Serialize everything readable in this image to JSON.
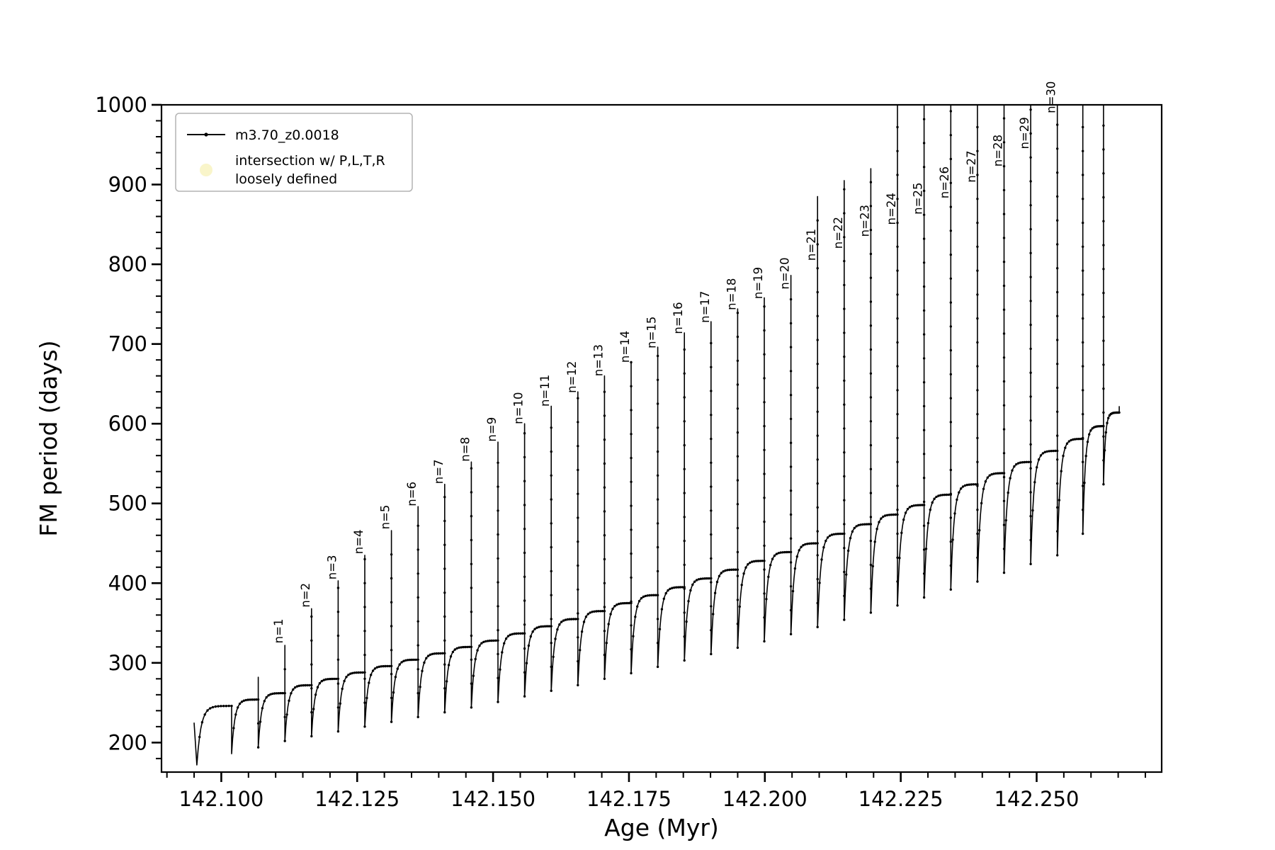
{
  "chart_data": {
    "type": "line",
    "title": "",
    "xlabel": "Age (Myr)",
    "ylabel": "FM period (days)",
    "xlim": [
      142.089,
      142.273
    ],
    "ylim": [
      163,
      1000
    ],
    "grid": false,
    "x_minor_step": 0.005,
    "y_minor_step": 20,
    "xticks": [
      {
        "v": 142.1,
        "label": "142.100"
      },
      {
        "v": 142.125,
        "label": "142.125"
      },
      {
        "v": 142.15,
        "label": "142.150"
      },
      {
        "v": 142.175,
        "label": "142.175"
      },
      {
        "v": 142.2,
        "label": "142.200"
      },
      {
        "v": 142.225,
        "label": "142.225"
      },
      {
        "v": 142.25,
        "label": "142.250"
      }
    ],
    "yticks": [
      {
        "v": 200,
        "label": "200"
      },
      {
        "v": 300,
        "label": "300"
      },
      {
        "v": 400,
        "label": "400"
      },
      {
        "v": 500,
        "label": "500"
      },
      {
        "v": 600,
        "label": "600"
      },
      {
        "v": 700,
        "label": "700"
      },
      {
        "v": 800,
        "label": "800"
      },
      {
        "v": 900,
        "label": "900"
      },
      {
        "v": 1000,
        "label": "1000"
      }
    ],
    "legend": {
      "position": "upper-left",
      "entries": [
        {
          "label": "m3.70_z0.0018",
          "marker": "line-dot",
          "color": "#000000"
        },
        {
          "label_lines": [
            "intersection w/ P,L,T,R",
            "loosely defined"
          ],
          "marker": "dot",
          "color": "#f5eea6"
        }
      ]
    },
    "series": [
      {
        "name": "m3.70_z0.0018",
        "color": "#000000",
        "marker": "point"
      }
    ],
    "curve": {
      "recovery_tau": 0.12,
      "start": {
        "x": 142.095,
        "y": 225
      },
      "end": {
        "x": 142.2652,
        "y": 622
      },
      "events": [
        {
          "n": null,
          "label": null,
          "x": 142.0955,
          "peak": null,
          "label_y": null,
          "dip": 172,
          "plateau": 246
        },
        {
          "n": null,
          "label": null,
          "x": 142.1019,
          "peak": null,
          "label_y": null,
          "dip": 186,
          "plateau": 254
        },
        {
          "n": null,
          "label": null,
          "x": 142.1068,
          "peak": 282,
          "label_y": null,
          "dip": 194,
          "plateau": 262
        },
        {
          "n": 1,
          "label": "n=1",
          "x": 142.1117,
          "peak": 322,
          "label_y": 320,
          "dip": 202,
          "plateau": 272
        },
        {
          "n": 2,
          "label": "n=2",
          "x": 142.1166,
          "peak": 368,
          "label_y": 365,
          "dip": 208,
          "plateau": 280
        },
        {
          "n": 3,
          "label": "n=3",
          "x": 142.1215,
          "peak": 403,
          "label_y": 400,
          "dip": 214,
          "plateau": 288
        },
        {
          "n": 4,
          "label": "n=4",
          "x": 142.1264,
          "peak": 435,
          "label_y": 432,
          "dip": 220,
          "plateau": 296
        },
        {
          "n": 5,
          "label": "n=5",
          "x": 142.1313,
          "peak": 466,
          "label_y": 463,
          "dip": 226,
          "plateau": 304
        },
        {
          "n": 6,
          "label": "n=6",
          "x": 142.1362,
          "peak": 496,
          "label_y": 492,
          "dip": 232,
          "plateau": 312
        },
        {
          "n": 7,
          "label": "n=7",
          "x": 142.1411,
          "peak": 524,
          "label_y": 520,
          "dip": 238,
          "plateau": 320
        },
        {
          "n": 8,
          "label": "n=8",
          "x": 142.146,
          "peak": 552,
          "label_y": 548,
          "dip": 244,
          "plateau": 328
        },
        {
          "n": 9,
          "label": "n=9",
          "x": 142.1509,
          "peak": 577,
          "label_y": 573,
          "dip": 251,
          "plateau": 337
        },
        {
          "n": 10,
          "label": "n=10",
          "x": 142.1558,
          "peak": 600,
          "label_y": 595,
          "dip": 258,
          "plateau": 346
        },
        {
          "n": 11,
          "label": "n=11",
          "x": 142.1607,
          "peak": 622,
          "label_y": 617,
          "dip": 265,
          "plateau": 355
        },
        {
          "n": 12,
          "label": "n=12",
          "x": 142.1656,
          "peak": 640,
          "label_y": 634,
          "dip": 272,
          "plateau": 365
        },
        {
          "n": 13,
          "label": "n=13",
          "x": 142.1705,
          "peak": 660,
          "label_y": 655,
          "dip": 280,
          "plateau": 375
        },
        {
          "n": 14,
          "label": "n=14",
          "x": 142.1754,
          "peak": 678,
          "label_y": 672,
          "dip": 287,
          "plateau": 385
        },
        {
          "n": 15,
          "label": "n=15",
          "x": 142.1803,
          "peak": 696,
          "label_y": 690,
          "dip": 295,
          "plateau": 395
        },
        {
          "n": 16,
          "label": "n=16",
          "x": 142.1852,
          "peak": 714,
          "label_y": 708,
          "dip": 303,
          "plateau": 406
        },
        {
          "n": 17,
          "label": "n=17",
          "x": 142.1901,
          "peak": 728,
          "label_y": 722,
          "dip": 311,
          "plateau": 417
        },
        {
          "n": 18,
          "label": "n=18",
          "x": 142.195,
          "peak": 744,
          "label_y": 738,
          "dip": 319,
          "plateau": 428
        },
        {
          "n": 19,
          "label": "n=19",
          "x": 142.1999,
          "peak": 758,
          "label_y": 752,
          "dip": 327,
          "plateau": 439
        },
        {
          "n": 20,
          "label": "n=20",
          "x": 142.2048,
          "peak": 786,
          "label_y": 764,
          "dip": 336,
          "plateau": 450
        },
        {
          "n": 21,
          "label": "n=21",
          "x": 142.2097,
          "peak": 885,
          "label_y": 800,
          "dip": 345,
          "plateau": 462
        },
        {
          "n": 22,
          "label": "n=22",
          "x": 142.2146,
          "peak": 905,
          "label_y": 815,
          "dip": 354,
          "plateau": 474
        },
        {
          "n": 23,
          "label": "n=23",
          "x": 142.2195,
          "peak": 920,
          "label_y": 830,
          "dip": 363,
          "plateau": 486
        },
        {
          "n": 24,
          "label": "n=24",
          "x": 142.2244,
          "peak": 1005,
          "label_y": 845,
          "dip": 372,
          "plateau": 498
        },
        {
          "n": 25,
          "label": "n=25",
          "x": 142.2293,
          "peak": 1005,
          "label_y": 858,
          "dip": 382,
          "plateau": 511
        },
        {
          "n": 26,
          "label": "n=26",
          "x": 142.2342,
          "peak": 1005,
          "label_y": 878,
          "dip": 392,
          "plateau": 524
        },
        {
          "n": 27,
          "label": "n=27",
          "x": 142.2391,
          "peak": 1005,
          "label_y": 898,
          "dip": 402,
          "plateau": 538
        },
        {
          "n": 28,
          "label": "n=28",
          "x": 142.244,
          "peak": 1005,
          "label_y": 918,
          "dip": 413,
          "plateau": 552
        },
        {
          "n": 29,
          "label": "n=29",
          "x": 142.2489,
          "peak": 1005,
          "label_y": 940,
          "dip": 424,
          "plateau": 566
        },
        {
          "n": 30,
          "label": "n=30",
          "x": 142.2538,
          "peak": 1005,
          "label_y": 985,
          "dip": 435,
          "plateau": 581
        },
        {
          "n": null,
          "label": null,
          "x": 142.2585,
          "peak": 1005,
          "label_y": null,
          "dip": 462,
          "plateau": 597
        },
        {
          "n": null,
          "label": null,
          "x": 142.2623,
          "peak": 1005,
          "label_y": null,
          "dip": 524,
          "plateau": 614
        }
      ]
    }
  }
}
